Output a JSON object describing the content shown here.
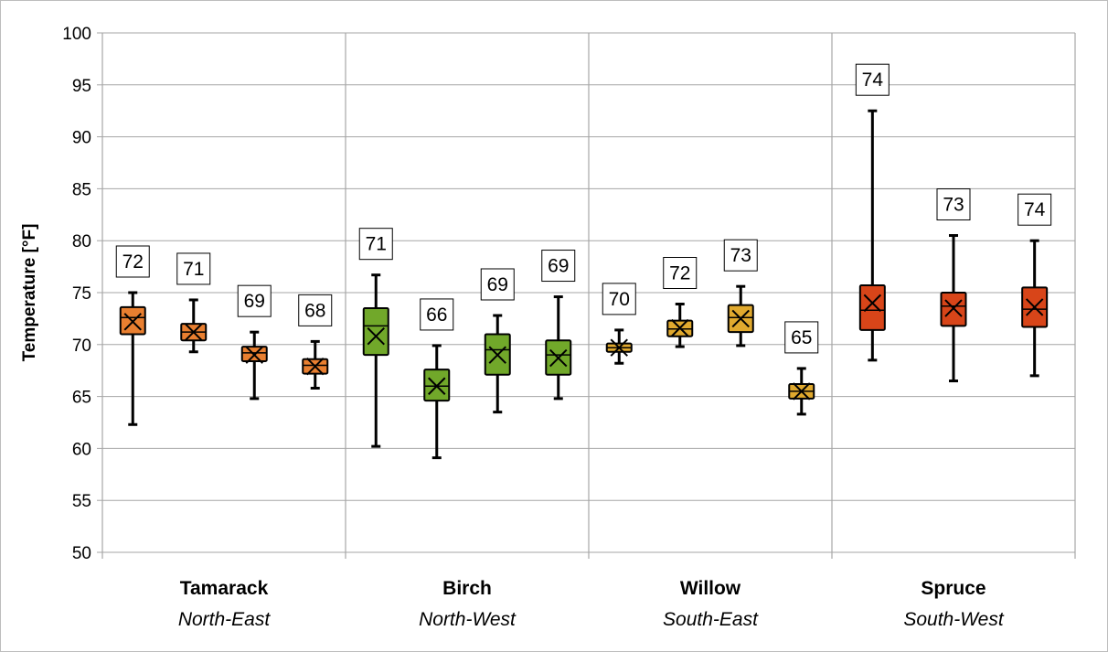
{
  "chart_data": {
    "type": "box",
    "title": "",
    "xlabel": "",
    "ylabel": "Temperature [°F]",
    "ylim": [
      50,
      100
    ],
    "yticks": [
      50,
      55,
      60,
      65,
      70,
      75,
      80,
      85,
      90,
      95,
      100
    ],
    "grid": "horizontal and group separators",
    "legend": "none",
    "colors": {
      "Tamarack": "#E97F30",
      "Birch": "#71A82A",
      "Willow": "#E0A92E",
      "Spruce": "#D84519"
    },
    "groups": [
      {
        "name": "Tamarack",
        "direction": "North-East",
        "color": "#E97F30",
        "boxes": [
          {
            "min": 62.3,
            "q1": 71.0,
            "median": 72.6,
            "q3": 73.6,
            "max": 75.0,
            "mean": 72.2,
            "label": "72"
          },
          {
            "min": 69.3,
            "q1": 70.4,
            "median": 71.2,
            "q3": 72.0,
            "max": 74.3,
            "mean": 71.2,
            "label": "71"
          },
          {
            "min": 64.8,
            "q1": 68.4,
            "median": 69.2,
            "q3": 69.8,
            "max": 71.2,
            "mean": 69.0,
            "label": "69"
          },
          {
            "min": 65.8,
            "q1": 67.2,
            "median": 68.0,
            "q3": 68.6,
            "max": 70.3,
            "mean": 67.9,
            "label": "68"
          }
        ]
      },
      {
        "name": "Birch",
        "direction": "North-West",
        "color": "#71A82A",
        "boxes": [
          {
            "min": 60.2,
            "q1": 69.0,
            "median": 71.8,
            "q3": 73.5,
            "max": 76.7,
            "mean": 70.8,
            "label": "71"
          },
          {
            "min": 59.1,
            "q1": 64.6,
            "median": 66.0,
            "q3": 67.6,
            "max": 69.9,
            "mean": 66.0,
            "label": "66"
          },
          {
            "min": 63.5,
            "q1": 67.1,
            "median": 69.5,
            "q3": 71.0,
            "max": 72.8,
            "mean": 69.0,
            "label": "69"
          },
          {
            "min": 64.8,
            "q1": 67.1,
            "median": 69.0,
            "q3": 70.4,
            "max": 74.6,
            "mean": 68.7,
            "label": "69"
          }
        ]
      },
      {
        "name": "Willow",
        "direction": "South-East",
        "color": "#E0A92E",
        "boxes": [
          {
            "min": 68.2,
            "q1": 69.3,
            "median": 69.7,
            "q3": 70.1,
            "max": 71.4,
            "mean": 69.7,
            "label": "70"
          },
          {
            "min": 69.8,
            "q1": 70.8,
            "median": 71.5,
            "q3": 72.3,
            "max": 73.9,
            "mean": 71.6,
            "label": "72"
          },
          {
            "min": 69.9,
            "q1": 71.2,
            "median": 72.6,
            "q3": 73.8,
            "max": 75.6,
            "mean": 72.5,
            "label": "73"
          },
          {
            "min": 63.3,
            "q1": 64.8,
            "median": 65.5,
            "q3": 66.2,
            "max": 67.7,
            "mean": 65.5,
            "label": "65"
          }
        ]
      },
      {
        "name": "Spruce",
        "direction": "South-West",
        "color": "#D84519",
        "boxes": [
          {
            "min": 68.5,
            "q1": 71.4,
            "median": 73.3,
            "q3": 75.7,
            "max": 92.5,
            "mean": 74.0,
            "label": "74"
          },
          {
            "min": 66.5,
            "q1": 71.8,
            "median": 73.7,
            "q3": 75.0,
            "max": 80.5,
            "mean": 73.5,
            "label": "73"
          },
          {
            "min": 67.0,
            "q1": 71.7,
            "median": 73.4,
            "q3": 75.5,
            "max": 80.0,
            "mean": 73.6,
            "label": "74"
          }
        ]
      }
    ]
  }
}
